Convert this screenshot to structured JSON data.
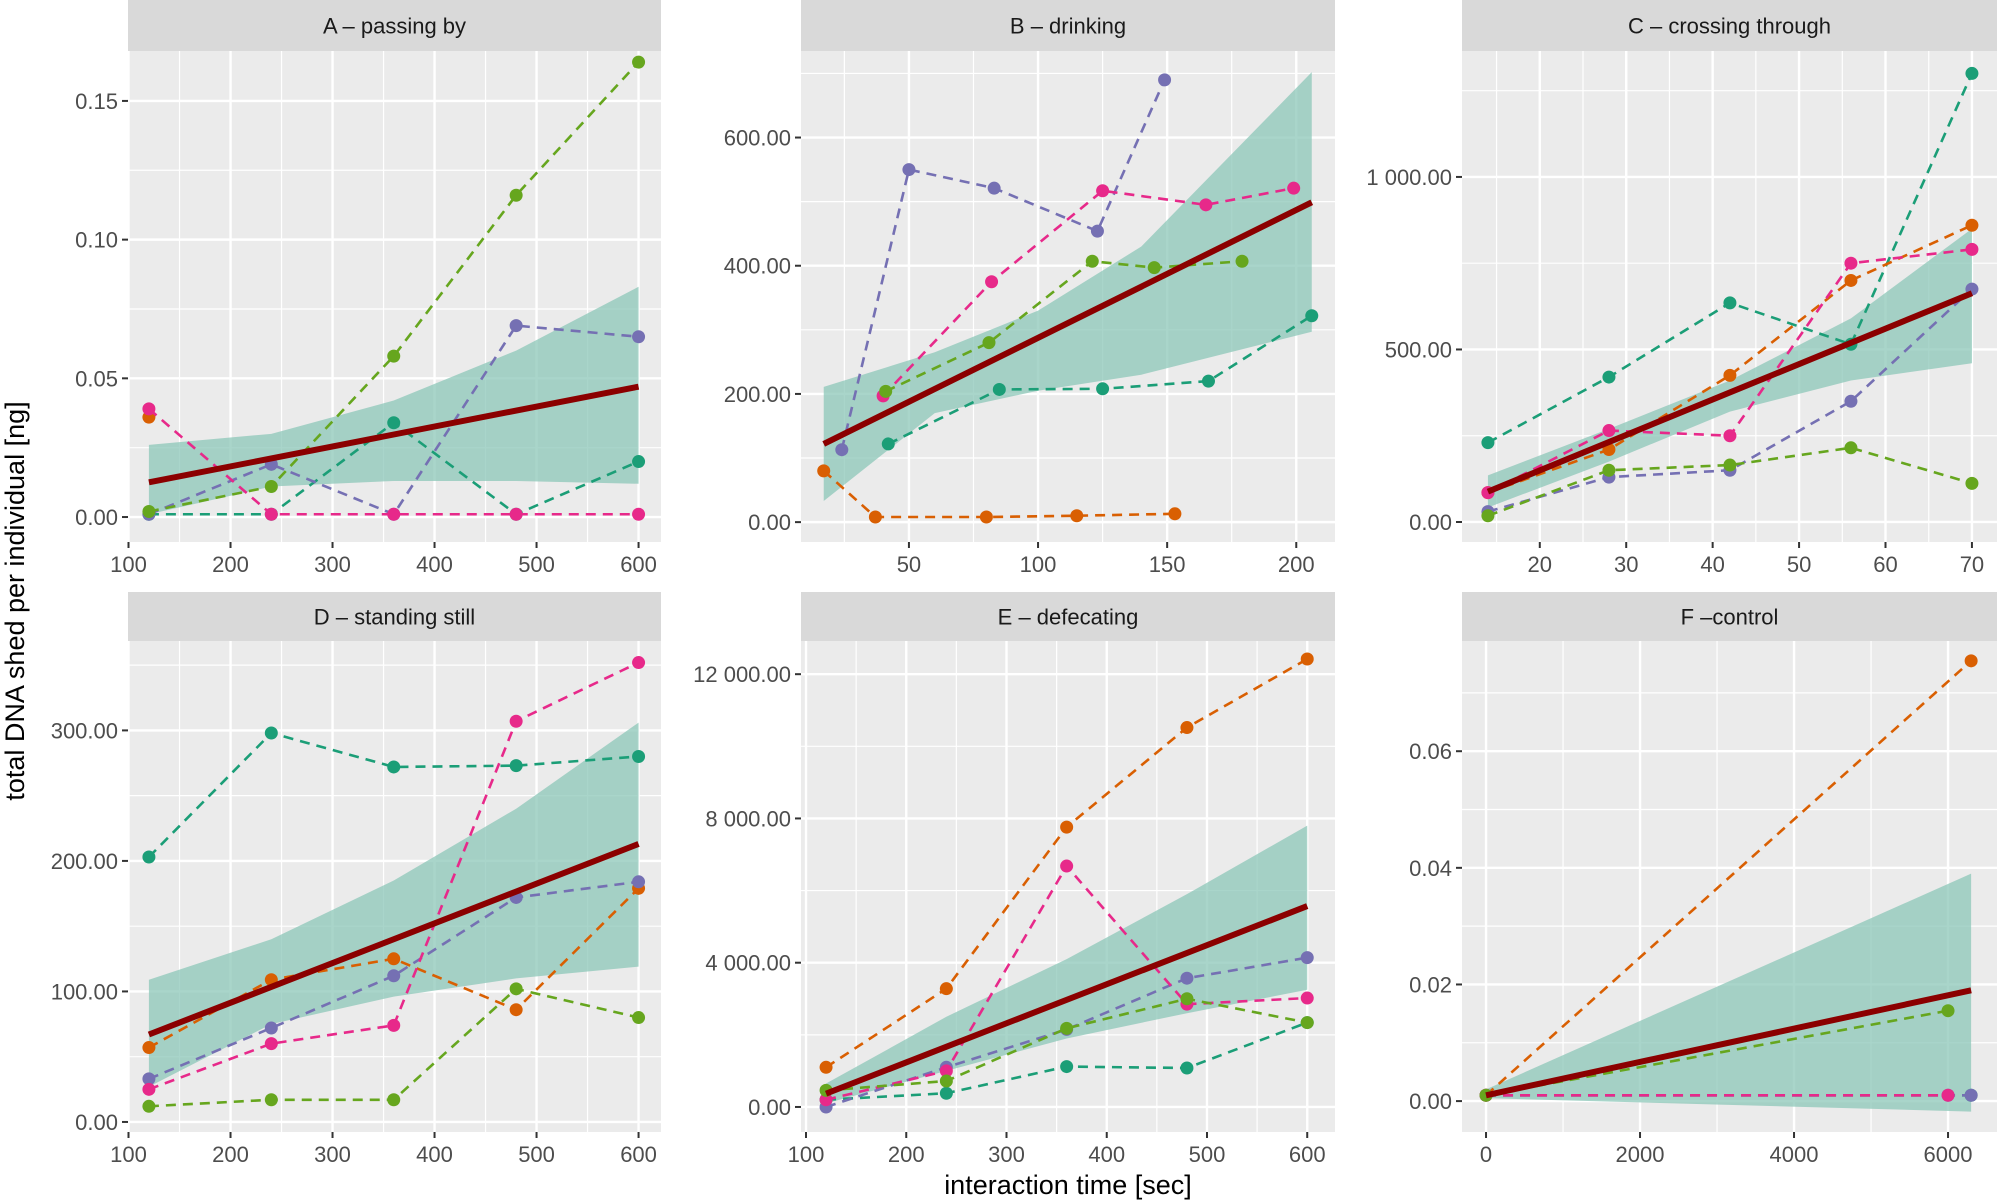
{
  "chart_data": {
    "type": "line",
    "layout": "facet-grid 2x3",
    "xlabel": "interaction time [sec]",
    "ylabel": "total DNA shed per individual [ng]",
    "grid": true,
    "legend": "none",
    "series_colors": {
      "teal": "#1B9E77",
      "orange": "#D95F02",
      "purple": "#7570B3",
      "pink": "#E7298A",
      "green": "#66A61E"
    },
    "fit_color": "#8B0000",
    "ribbon_color": "#8CC7B8",
    "panels": [
      {
        "id": "A",
        "title": "A – passing by",
        "xlim": [
          99.5,
          622
        ],
        "ylim": [
          -0.009,
          0.168
        ],
        "xticks": [
          100,
          200,
          300,
          400,
          500,
          600
        ],
        "xtick_labels": [
          "100",
          "200",
          "300",
          "400",
          "500",
          "600"
        ],
        "yticks": [
          0,
          0.05,
          0.1,
          0.15
        ],
        "ytick_labels": [
          "0.00",
          "0.05",
          "0.10",
          "0.15"
        ],
        "series": [
          {
            "name": "teal",
            "x": [
              120,
              240,
              360,
              480,
              600
            ],
            "y": [
              0.001,
              0.001,
              0.034,
              0.001,
              0.02
            ]
          },
          {
            "name": "orange",
            "x": [
              120
            ],
            "y": [
              0.036
            ]
          },
          {
            "name": "purple",
            "x": [
              120,
              240,
              360,
              480,
              600
            ],
            "y": [
              0.001,
              0.019,
              0.001,
              0.069,
              0.065
            ]
          },
          {
            "name": "pink",
            "x": [
              120,
              240,
              360,
              480,
              600
            ],
            "y": [
              0.039,
              0.001,
              0.001,
              0.001,
              0.001
            ]
          },
          {
            "name": "green",
            "x": [
              120,
              240,
              360,
              480,
              600
            ],
            "y": [
              0.002,
              0.011,
              0.058,
              0.116,
              0.164
            ]
          }
        ],
        "fit": {
          "x": [
            120,
            600
          ],
          "y": [
            0.0125,
            0.047
          ]
        },
        "ribbon": {
          "x": [
            120,
            240,
            360,
            480,
            600
          ],
          "upper": [
            0.026,
            0.03,
            0.042,
            0.06,
            0.083
          ],
          "lower": [
            0.001,
            0.011,
            0.013,
            0.013,
            0.012
          ]
        }
      },
      {
        "id": "B",
        "title": "B – drinking",
        "xlim": [
          8.2,
          215
        ],
        "ylim": [
          -31,
          735
        ],
        "xticks": [
          50,
          100,
          150,
          200
        ],
        "xtick_labels": [
          "50",
          "100",
          "150",
          "200"
        ],
        "yticks": [
          0,
          200,
          400,
          600
        ],
        "ytick_labels": [
          "0.00",
          "200.00",
          "400.00",
          "600.00"
        ],
        "series": [
          {
            "name": "teal",
            "x": [
              42,
              85,
              125,
              166,
              206
            ],
            "y": [
              122,
              207,
              208,
              220,
              322
            ]
          },
          {
            "name": "orange",
            "x": [
              17,
              37,
              80,
              115,
              153
            ],
            "y": [
              80,
              8,
              8,
              10,
              13
            ]
          },
          {
            "name": "purple",
            "x": [
              24,
              50,
              83,
              123,
              149
            ],
            "y": [
              113,
              550,
              521,
              454,
              690
            ]
          },
          {
            "name": "pink",
            "x": [
              40,
              82,
              125,
              165,
              199
            ],
            "y": [
              197,
              375,
              517,
              495,
              521
            ]
          },
          {
            "name": "green",
            "x": [
              41,
              81,
              121,
              145,
              179
            ],
            "y": [
              204,
              280,
              407,
              397,
              407
            ]
          }
        ],
        "fit": {
          "x": [
            17,
            206
          ],
          "y": [
            122,
            499
          ]
        },
        "ribbon": {
          "x": [
            17,
            60,
            100,
            140,
            206
          ],
          "upper": [
            211,
            265,
            330,
            430,
            702
          ],
          "lower": [
            33,
            170,
            205,
            230,
            297
          ]
        }
      },
      {
        "id": "C",
        "title": "C – crossing through",
        "xlim": [
          11.0,
          72.9
        ],
        "ylim": [
          -58,
          1365
        ],
        "xticks": [
          20,
          30,
          40,
          50,
          60,
          70
        ],
        "xtick_labels": [
          "20",
          "30",
          "40",
          "50",
          "60",
          "70"
        ],
        "yticks": [
          0,
          500,
          1000
        ],
        "ytick_labels": [
          "0.00",
          "500.00",
          "1 000.00"
        ],
        "series": [
          {
            "name": "teal",
            "x": [
              14,
              28,
              42,
              56,
              70
            ],
            "y": [
              230,
              420,
              635,
              515,
              1300
            ]
          },
          {
            "name": "orange",
            "x": [
              14,
              28,
              42,
              56,
              70
            ],
            "y": [
              85,
              210,
              425,
              700,
              860
            ]
          },
          {
            "name": "purple",
            "x": [
              14,
              28,
              42,
              56,
              70
            ],
            "y": [
              30,
              130,
              150,
              350,
              675
            ]
          },
          {
            "name": "pink",
            "x": [
              14,
              28,
              42,
              56,
              70
            ],
            "y": [
              85,
              265,
              250,
              750,
              790
            ]
          },
          {
            "name": "green",
            "x": [
              14,
              28,
              42,
              56,
              70
            ],
            "y": [
              18,
              150,
              165,
              215,
              112
            ]
          }
        ],
        "fit": {
          "x": [
            14,
            70
          ],
          "y": [
            88,
            663
          ]
        },
        "ribbon": {
          "x": [
            14,
            28,
            42,
            56,
            70
          ],
          "upper": [
            135,
            270,
            410,
            590,
            850
          ],
          "lower": [
            42,
            175,
            320,
            410,
            460
          ]
        }
      },
      {
        "id": "D",
        "title": "D – standing still",
        "xlim": [
          99.5,
          622
        ],
        "ylim": [
          -7.7,
          368.5
        ],
        "xticks": [
          100,
          200,
          300,
          400,
          500,
          600
        ],
        "xtick_labels": [
          "100",
          "200",
          "300",
          "400",
          "500",
          "600"
        ],
        "yticks": [
          0,
          100,
          200,
          300
        ],
        "ytick_labels": [
          "0.00",
          "100.00",
          "200.00",
          "300.00"
        ],
        "series": [
          {
            "name": "teal",
            "x": [
              120,
              240,
              360,
              480,
              600
            ],
            "y": [
              203,
              298,
              272,
              273,
              280
            ]
          },
          {
            "name": "orange",
            "x": [
              120,
              240,
              360,
              480,
              600
            ],
            "y": [
              57,
              109,
              125,
              86,
              179
            ]
          },
          {
            "name": "purple",
            "x": [
              120,
              240,
              360,
              480,
              600
            ],
            "y": [
              33,
              72,
              112,
              172,
              184
            ]
          },
          {
            "name": "pink",
            "x": [
              120,
              240,
              360,
              480,
              600
            ],
            "y": [
              25,
              60,
              74,
              307,
              352
            ]
          },
          {
            "name": "green",
            "x": [
              120,
              240,
              360,
              480,
              600
            ],
            "y": [
              12,
              17,
              17,
              102,
              80
            ]
          }
        ],
        "fit": {
          "x": [
            120,
            600
          ],
          "y": [
            67,
            213
          ]
        },
        "ribbon": {
          "x": [
            120,
            240,
            360,
            480,
            600
          ],
          "upper": [
            109,
            140,
            185,
            240,
            306
          ],
          "lower": [
            27,
            75,
            96,
            110,
            119
          ]
        }
      },
      {
        "id": "E",
        "title": "E – defecating",
        "xlim": [
          95,
          627.7
        ],
        "ylim": [
          -694,
          12920
        ],
        "xticks": [
          100,
          200,
          300,
          400,
          500,
          600
        ],
        "xtick_labels": [
          "100",
          "200",
          "300",
          "400",
          "500",
          "600"
        ],
        "yticks": [
          0,
          4000,
          8000,
          12000
        ],
        "ytick_labels": [
          "0.00",
          "4 000.00",
          "8 000.00",
          "12 000.00"
        ],
        "series": [
          {
            "name": "teal",
            "x": [
              120,
              240,
              360,
              480,
              600
            ],
            "y": [
              200,
              380,
              1120,
              1080,
              2340
            ]
          },
          {
            "name": "orange",
            "x": [
              120,
              240,
              360,
              480,
              600
            ],
            "y": [
              1100,
              3280,
              7760,
              10520,
              12420
            ]
          },
          {
            "name": "purple",
            "x": [
              120,
              240,
              360,
              480,
              600
            ],
            "y": [
              0,
              1100,
              2150,
              3570,
              4140
            ]
          },
          {
            "name": "pink",
            "x": [
              120,
              240,
              360,
              480,
              600
            ],
            "y": [
              200,
              1000,
              6680,
              2850,
              3020
            ]
          },
          {
            "name": "green",
            "x": [
              120,
              240,
              360,
              480,
              600
            ],
            "y": [
              460,
              720,
              2180,
              3000,
              2340
            ]
          }
        ],
        "fit": {
          "x": [
            120,
            600
          ],
          "y": [
            370,
            5570
          ]
        },
        "ribbon": {
          "x": [
            120,
            240,
            360,
            480,
            600
          ],
          "upper": [
            650,
            2500,
            4100,
            5900,
            7800
          ],
          "lower": [
            100,
            1000,
            1900,
            2600,
            3250
          ]
        }
      },
      {
        "id": "F",
        "title": "F –control",
        "xlim": [
          -312,
          6636
        ],
        "ylim": [
          -0.0053,
          0.0789
        ],
        "xticks": [
          0,
          2000,
          4000,
          6000
        ],
        "xtick_labels": [
          "0",
          "2000",
          "4000",
          "6000"
        ],
        "yticks": [
          0,
          0.02,
          0.04,
          0.06
        ],
        "ytick_labels": [
          "0.00",
          "0.02",
          "0.04",
          "0.06"
        ],
        "series": [
          {
            "name": "teal",
            "x": [
              0,
              6300
            ],
            "y": [
              0.001,
              0.001
            ]
          },
          {
            "name": "orange",
            "x": [
              0,
              6300
            ],
            "y": [
              0.001,
              0.0755
            ]
          },
          {
            "name": "purple",
            "x": [
              0,
              6000,
              6300
            ],
            "y": [
              0.001,
              0.001,
              0.001
            ]
          },
          {
            "name": "pink",
            "x": [
              0,
              6000
            ],
            "y": [
              0.001,
              0.001
            ]
          },
          {
            "name": "green",
            "x": [
              0,
              6000
            ],
            "y": [
              0.001,
              0.0155
            ]
          }
        ],
        "fit": {
          "x": [
            0,
            6300
          ],
          "y": [
            0.001,
            0.019
          ]
        },
        "ribbon": {
          "x": [
            0,
            6300
          ],
          "upper": [
            0.002,
            0.039
          ],
          "lower": [
            0.0005,
            -0.0018
          ]
        }
      }
    ]
  }
}
